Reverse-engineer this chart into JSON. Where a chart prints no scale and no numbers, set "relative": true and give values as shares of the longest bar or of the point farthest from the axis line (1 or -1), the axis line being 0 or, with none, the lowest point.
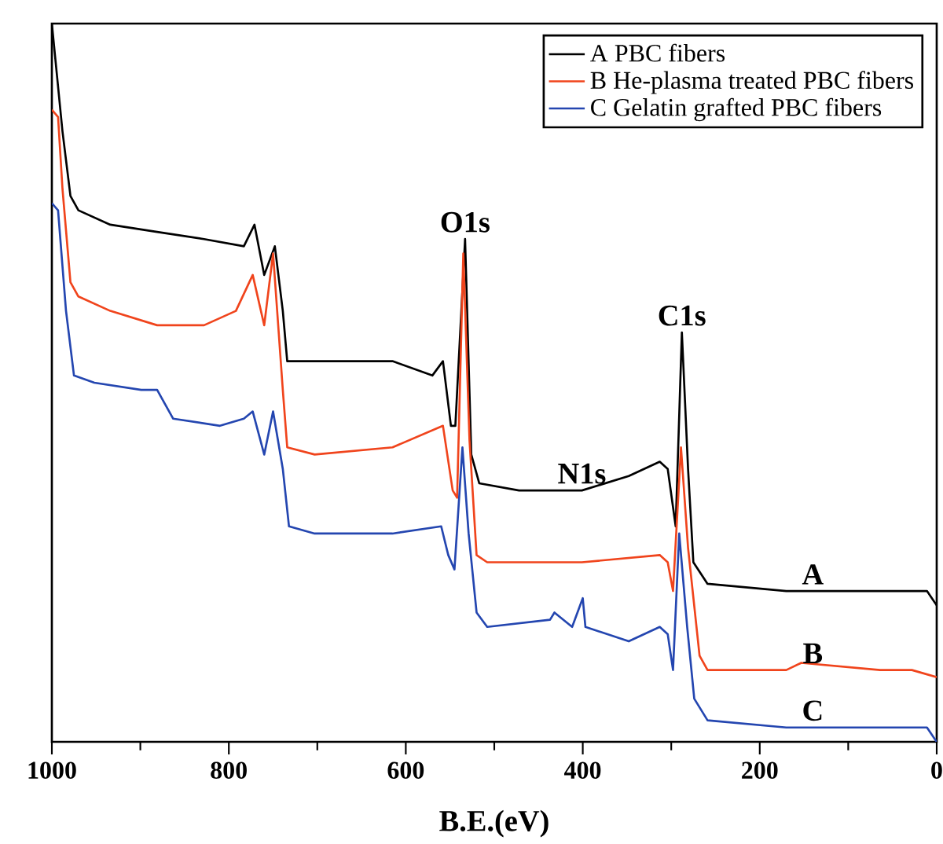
{
  "chart_data": {
    "type": "line",
    "xlabel": "B.E.(eV)",
    "relative": true,
    "xlim": [
      1000,
      0
    ],
    "xticks": [
      1000,
      {
        "value": 900,
        "label": null
      },
      800,
      {
        "value": 700,
        "label": null
      },
      600,
      {
        "value": 500,
        "label": null
      },
      400,
      {
        "value": 300,
        "label": null
      },
      200,
      {
        "value": 100,
        "label": null
      },
      0
    ],
    "legend": "top right",
    "grid": false,
    "marker": "none",
    "line_style": "solid",
    "x": [
      1000,
      988,
      979,
      970,
      934,
      881,
      828,
      783,
      771,
      760,
      748,
      739,
      734,
      703,
      615,
      570,
      558,
      549,
      544,
      533,
      526,
      517,
      472,
      401,
      348,
      313,
      304,
      295,
      288,
      281,
      275,
      259,
      170,
      64,
      11,
      0
    ],
    "series": [
      {
        "name": "A PBC fibers",
        "color": "#000000",
        "values": [
          1.0,
          0.85,
          0.76,
          0.74,
          0.72,
          0.71,
          0.7,
          0.69,
          0.72,
          0.65,
          0.69,
          0.6,
          0.53,
          0.53,
          0.53,
          0.51,
          0.53,
          0.44,
          0.44,
          0.7,
          0.4,
          0.36,
          0.35,
          0.35,
          0.37,
          0.39,
          0.38,
          0.3,
          0.57,
          0.38,
          0.25,
          0.22,
          0.21,
          0.21,
          0.21,
          0.19
        ]
      },
      {
        "name": "B  He-plasma treated PBC fibers",
        "color": "#f0441c",
        "x": [
          1000,
          993,
          988,
          979,
          970,
          934,
          881,
          828,
          792,
          773,
          760,
          750,
          739,
          734,
          703,
          615,
          558,
          547,
          542,
          535,
          528,
          520,
          508,
          401,
          313,
          304,
          298,
          289,
          281,
          268,
          259,
          170,
          153,
          64,
          28,
          0
        ],
        "values": [
          0.88,
          0.87,
          0.77,
          0.64,
          0.62,
          0.6,
          0.58,
          0.58,
          0.6,
          0.65,
          0.58,
          0.68,
          0.49,
          0.41,
          0.4,
          0.41,
          0.44,
          0.35,
          0.34,
          0.68,
          0.42,
          0.26,
          0.25,
          0.25,
          0.26,
          0.25,
          0.21,
          0.41,
          0.27,
          0.12,
          0.1,
          0.1,
          0.11,
          0.1,
          0.1,
          0.09
        ]
      },
      {
        "name": "C  Gelatin grafted PBC fibers",
        "color": "#2446b0",
        "x": [
          1000,
          993,
          984,
          975,
          952,
          899,
          881,
          863,
          810,
          783,
          773,
          760,
          750,
          739,
          732,
          703,
          615,
          560,
          552,
          545,
          536,
          529,
          520,
          508,
          437,
          432,
          412,
          400,
          397,
          348,
          313,
          304,
          298,
          291,
          282,
          274,
          259,
          170,
          64,
          11,
          0
        ],
        "values": [
          0.75,
          0.74,
          0.6,
          0.51,
          0.5,
          0.49,
          0.49,
          0.45,
          0.44,
          0.45,
          0.46,
          0.4,
          0.46,
          0.38,
          0.3,
          0.29,
          0.29,
          0.3,
          0.26,
          0.24,
          0.41,
          0.29,
          0.18,
          0.16,
          0.17,
          0.18,
          0.16,
          0.2,
          0.16,
          0.14,
          0.16,
          0.15,
          0.1,
          0.29,
          0.16,
          0.06,
          0.03,
          0.02,
          0.02,
          0.02,
          0.0
        ]
      }
    ],
    "annotations": [
      {
        "text": "O1s",
        "x": 533,
        "y": 0.7
      },
      {
        "text": "N1s",
        "x": 401,
        "y": 0.35
      },
      {
        "text": "C1s",
        "x": 288,
        "y": 0.57
      },
      {
        "text": "A",
        "x": 140,
        "y": 0.21
      },
      {
        "text": "B",
        "x": 140,
        "y": 0.1
      },
      {
        "text": "C",
        "x": 140,
        "y": 0.02
      }
    ]
  }
}
